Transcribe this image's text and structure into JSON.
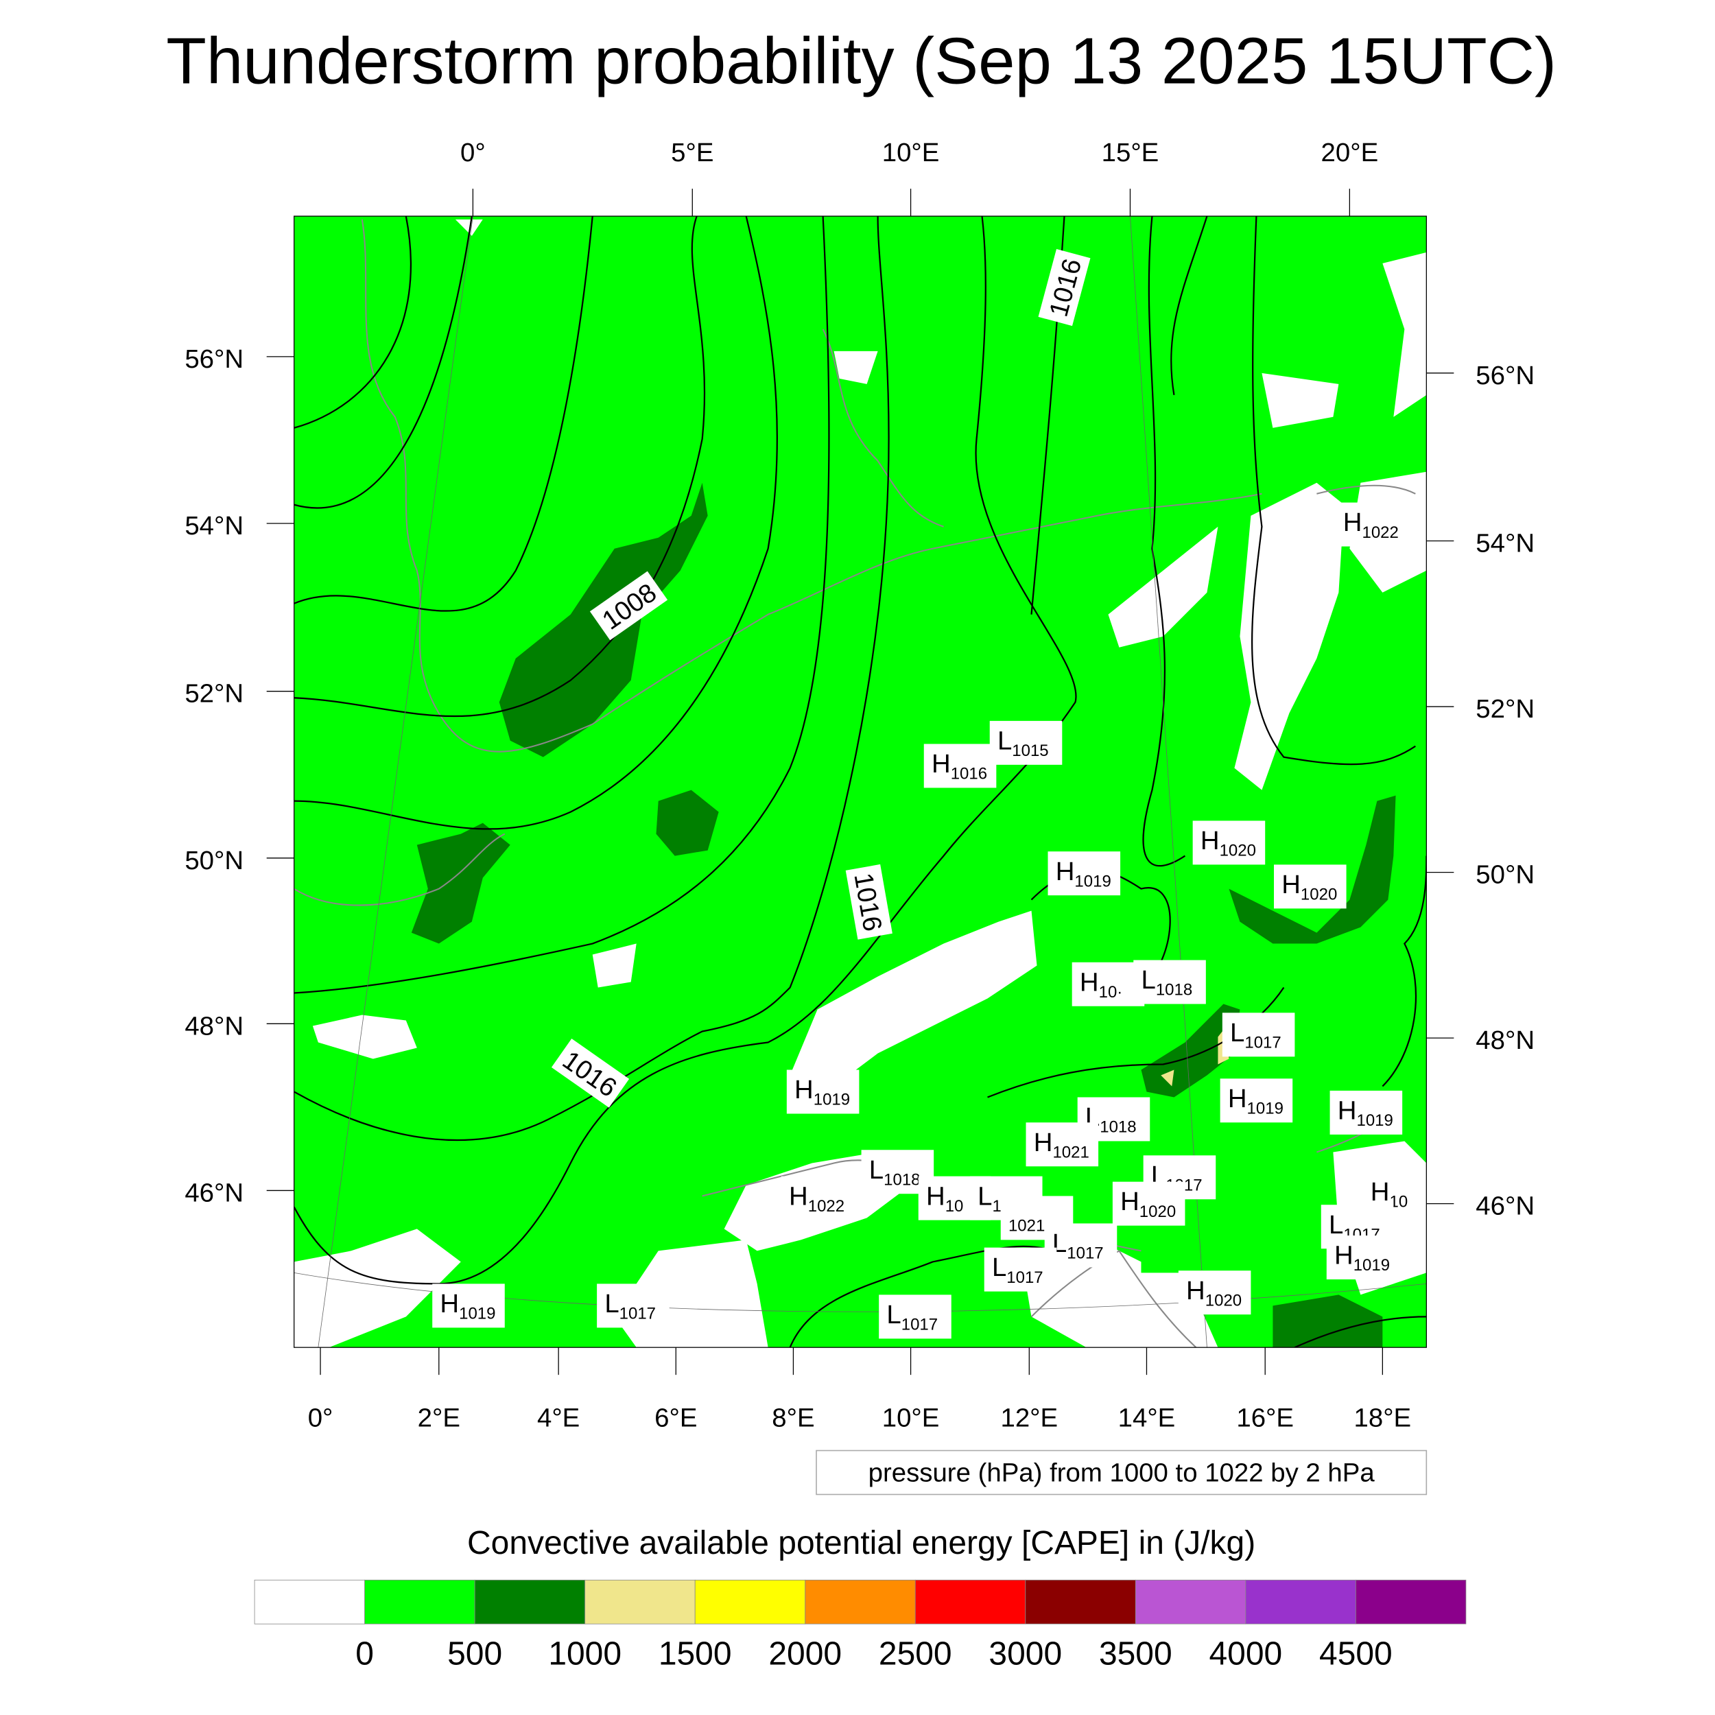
{
  "title": "Thunderstorm probability (Sep 13 2025 15UTC)",
  "top_lon_labels": [
    "0°",
    "5°E",
    "10°E",
    "15°E",
    "20°E"
  ],
  "left_lat_labels": [
    "56°N",
    "54°N",
    "52°N",
    "50°N",
    "48°N",
    "46°N"
  ],
  "right_lat_labels": [
    "56°N",
    "54°N",
    "52°N",
    "50°N",
    "48°N",
    "46°N"
  ],
  "bottom_lon_labels": [
    "0°",
    "2°E",
    "4°E",
    "6°E",
    "8°E",
    "10°E",
    "12°E",
    "14°E",
    "16°E",
    "18°E"
  ],
  "contour_info": "pressure (hPa) from 1000 to 1022 by 2 hPa",
  "contour_line_labels": [
    "1008",
    "1016",
    "1016",
    "1016"
  ],
  "pressure_centers": [
    {
      "type": "L",
      "value": "1015"
    },
    {
      "type": "H",
      "value": "1016"
    },
    {
      "type": "H",
      "value": "1020"
    },
    {
      "type": "H",
      "value": "1019"
    },
    {
      "type": "H",
      "value": "1020"
    },
    {
      "type": "H",
      "value": "10·"
    },
    {
      "type": "L",
      "value": "1018"
    },
    {
      "type": "L",
      "value": "1017"
    },
    {
      "type": "H",
      "value": "1019"
    },
    {
      "type": "H",
      "value": "1019"
    },
    {
      "type": "H",
      "value": "1019"
    },
    {
      "type": "L",
      "value": "1018"
    },
    {
      "type": "H",
      "value": "1021"
    },
    {
      "type": "L",
      "value": "1018"
    },
    {
      "type": "H",
      "value": "1022"
    },
    {
      "type": "H",
      "value": "10"
    },
    {
      "type": "L",
      "value": "1017"
    },
    {
      "type": "",
      "value": "1021"
    },
    {
      "type": "L",
      "value": "1017"
    },
    {
      "type": "H",
      "value": "1020"
    },
    {
      "type": "H",
      "value": "10"
    },
    {
      "type": "L",
      "value": "1017"
    },
    {
      "type": "H",
      "value": "1019"
    },
    {
      "type": "L",
      "value": "1017"
    },
    {
      "type": "L",
      "value": "1017"
    },
    {
      "type": "H",
      "value": "1022"
    },
    {
      "type": "H",
      "value": "1020"
    },
    {
      "type": "H",
      "value": "1019"
    },
    {
      "type": "L",
      "value": "1017"
    },
    {
      "type": "L",
      "value": "1017"
    }
  ],
  "colorbar": {
    "title": "Convective available potential energy [CAPE] in (J/kg)",
    "colors": [
      "#ffffff",
      "#00ff00",
      "#008000",
      "#f0e68c",
      "#ffff00",
      "#ff8c00",
      "#ff0000",
      "#8b0000",
      "#ba55d3",
      "#9932cc",
      "#8b008b"
    ],
    "labels": [
      "0",
      "500",
      "1000",
      "1500",
      "2000",
      "2500",
      "3000",
      "3500",
      "4000",
      "4500"
    ]
  }
}
